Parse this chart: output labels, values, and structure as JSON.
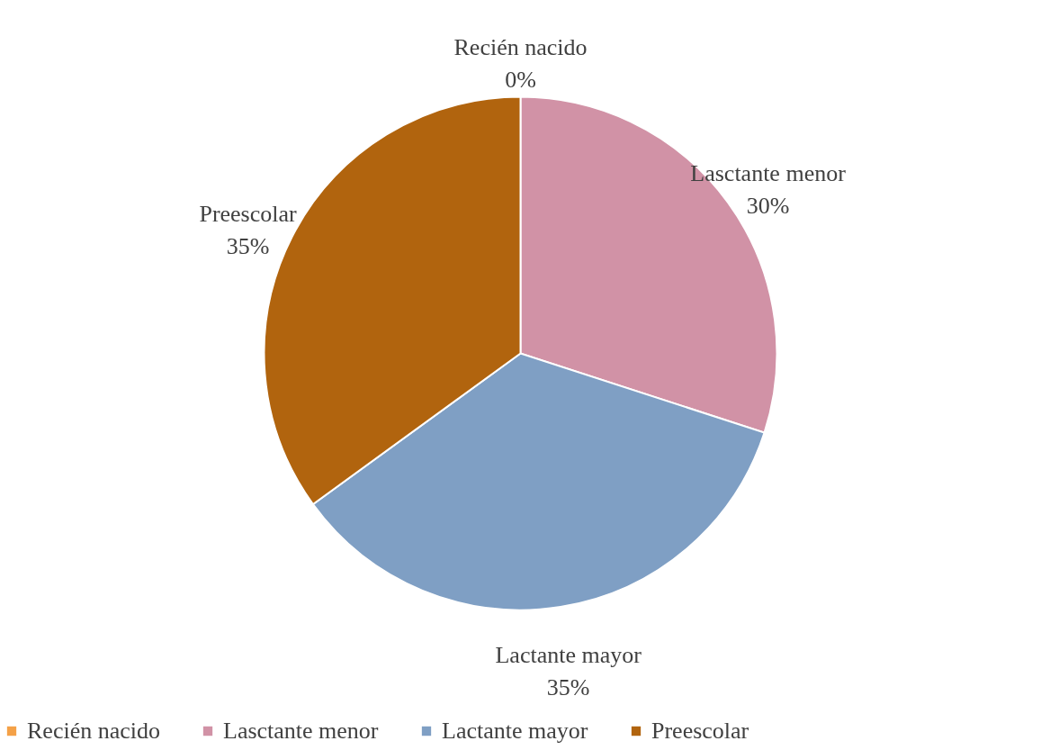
{
  "chart_data": {
    "type": "pie",
    "categories": [
      "Recién nacido",
      "Lasctante menor",
      "Lactante mayor",
      "Preescolar"
    ],
    "values": [
      0,
      30,
      35,
      35
    ],
    "colors": [
      "#f4a147",
      "#d192a6",
      "#7f9fc4",
      "#b1640e"
    ],
    "value_labels": [
      "0%",
      "30%",
      "35%",
      "35%"
    ],
    "legend": "bottom"
  }
}
